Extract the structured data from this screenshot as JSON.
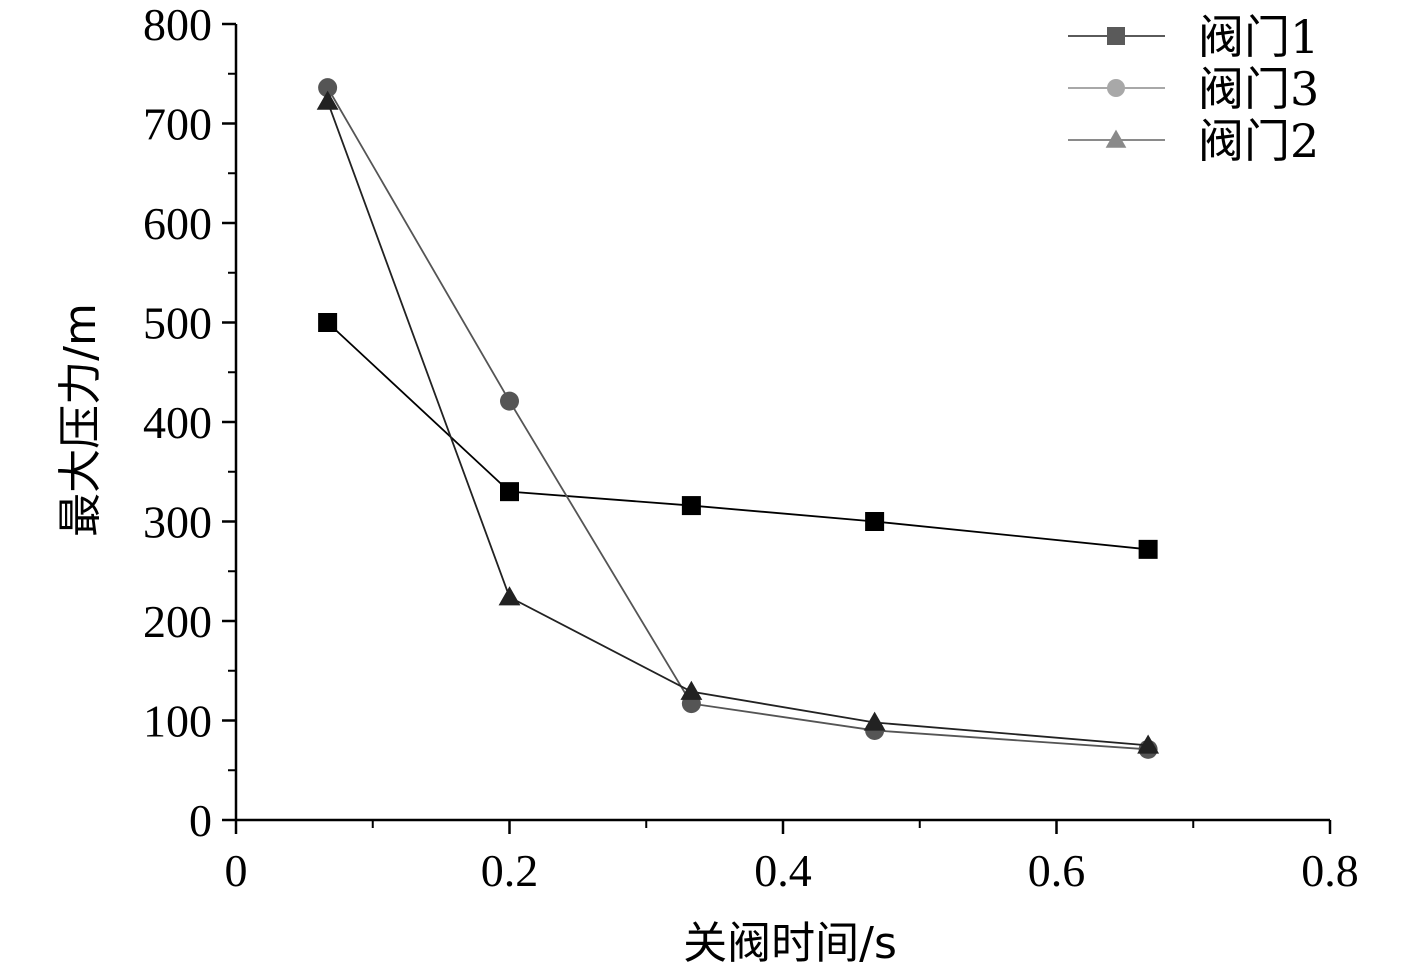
{
  "chart_data": {
    "type": "line",
    "xlabel": "关阀时间/s",
    "ylabel": "最大压力/m",
    "xlim": [
      0,
      0.8
    ],
    "ylim": [
      0,
      800
    ],
    "x_ticks": [
      "0",
      "0.2",
      "0.4",
      "0.6",
      "0.8"
    ],
    "y_ticks": [
      "0",
      "100",
      "200",
      "300",
      "400",
      "500",
      "600",
      "700",
      "800"
    ],
    "grid": false,
    "legend_position": "top-right",
    "series": [
      {
        "name": "阀门1",
        "marker": "square",
        "color": "#000000",
        "legend_color": "#5a5a5a",
        "x": [
          0.067,
          0.2,
          0.333,
          0.467,
          0.667
        ],
        "y": [
          500,
          330,
          316,
          300,
          272
        ]
      },
      {
        "name": "阀门3",
        "marker": "circle",
        "color": "#555555",
        "legend_color": "#a8a8a8",
        "x": [
          0.067,
          0.2,
          0.333,
          0.467,
          0.667
        ],
        "y": [
          736,
          421,
          117,
          90,
          71
        ]
      },
      {
        "name": "阀门2",
        "marker": "triangle",
        "color": "#222222",
        "legend_color": "#8a8a8a",
        "x": [
          0.067,
          0.2,
          0.333,
          0.467,
          0.667
        ],
        "y": [
          722,
          224,
          129,
          98,
          75
        ]
      }
    ]
  }
}
